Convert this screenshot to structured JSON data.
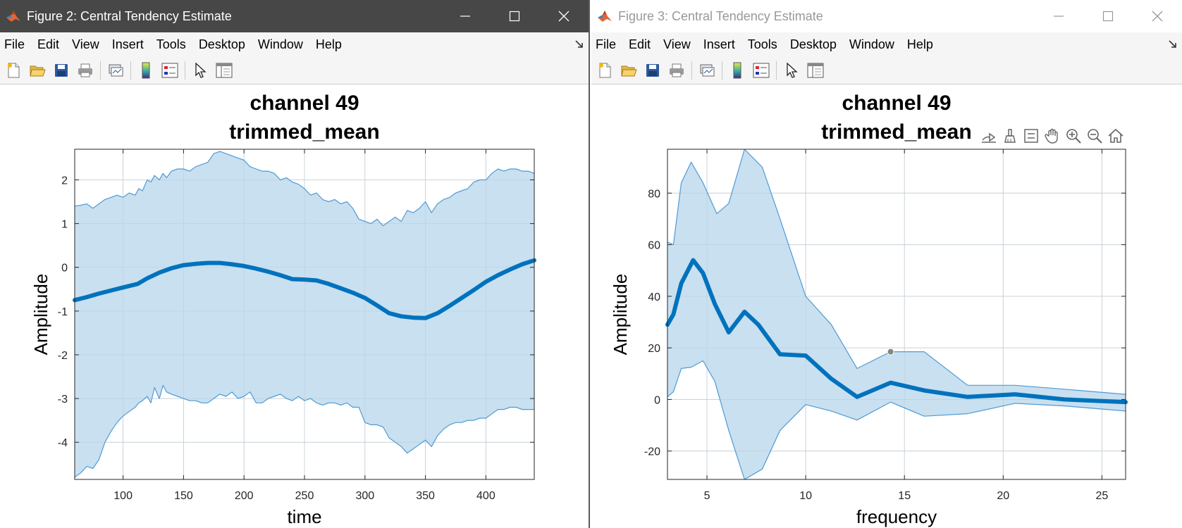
{
  "windows": [
    {
      "title": "Figure 2: Central Tendency Estimate",
      "menu": [
        "File",
        "Edit",
        "View",
        "Insert",
        "Tools",
        "Desktop",
        "Window",
        "Help"
      ],
      "toolbar_icons": [
        "new-figure-icon",
        "open-file-icon",
        "save-icon",
        "print-icon",
        "link-plot-icon",
        "insert-colorbar-icon",
        "insert-legend-icon",
        "edit-plot-icon",
        "property-inspector-icon"
      ]
    },
    {
      "title": "Figure 3: Central Tendency Estimate",
      "menu": [
        "File",
        "Edit",
        "View",
        "Insert",
        "Tools",
        "Desktop",
        "Window",
        "Help"
      ],
      "toolbar_icons": [
        "new-figure-icon",
        "open-file-icon",
        "save-icon",
        "print-icon",
        "link-plot-icon",
        "insert-colorbar-icon",
        "insert-legend-icon",
        "edit-plot-icon",
        "property-inspector-icon"
      ],
      "axes_toolbar": [
        "export-icon",
        "brush-icon",
        "data-tips-icon",
        "pan-icon",
        "zoom-in-icon",
        "zoom-out-icon",
        "home-icon"
      ]
    }
  ],
  "chart_data": [
    {
      "type": "area",
      "title": [
        "channel 49",
        "trimmed_mean"
      ],
      "xlabel": "time",
      "ylabel": "Amplitude",
      "xlim": [
        60,
        440
      ],
      "ylim": [
        -4.85,
        2.7
      ],
      "xticks": [
        100,
        150,
        200,
        250,
        300,
        350,
        400
      ],
      "yticks": [
        -4,
        -3,
        -2,
        -1,
        0,
        1,
        2
      ],
      "grid": true,
      "colors": {
        "line": "#0072BD",
        "band_fill": "#C9E0F0",
        "band_edge": "#4D9BD6"
      },
      "series": [
        {
          "values": {
            "x": [
              60,
              70,
              80,
              90,
              100,
              112,
              120,
              130,
              140,
              150,
              160,
              170,
              180,
              190,
              200,
              210,
              220,
              230,
              240,
              250,
              260,
              270,
              280,
              290,
              300,
              310,
              320,
              330,
              340,
              350,
              360,
              370,
              380,
              390,
              400,
              410,
              420,
              430,
              440
            ],
            "y": [
              -0.75,
              -0.68,
              -0.6,
              -0.53,
              -0.46,
              -0.38,
              -0.25,
              -0.12,
              -0.02,
              0.05,
              0.08,
              0.1,
              0.1,
              0.07,
              0.03,
              -0.03,
              -0.1,
              -0.18,
              -0.27,
              -0.28,
              -0.3,
              -0.38,
              -0.48,
              -0.58,
              -0.7,
              -0.87,
              -1.05,
              -1.12,
              -1.15,
              -1.16,
              -1.05,
              -0.88,
              -0.7,
              -0.52,
              -0.33,
              -0.18,
              -0.05,
              0.07,
              0.16
            ]
          }
        },
        {
          "values": {
            "x": [
              60,
              65,
              70,
              75,
              80,
              85,
              90,
              95,
              100,
              105,
              110,
              113,
              116,
              120,
              123,
              126,
              130,
              133,
              136,
              140,
              145,
              150,
              155,
              160,
              165,
              170,
              175,
              180,
              185,
              190,
              195,
              200,
              205,
              210,
              215,
              220,
              225,
              230,
              235,
              240,
              245,
              250,
              255,
              260,
              265,
              270,
              275,
              280,
              285,
              290,
              295,
              300,
              305,
              310,
              315,
              320,
              325,
              330,
              335,
              340,
              345,
              350,
              355,
              360,
              365,
              370,
              375,
              380,
              385,
              390,
              395,
              400,
              405,
              410,
              415,
              420,
              425,
              430,
              435,
              440
            ],
            "y": [
              1.4,
              1.42,
              1.45,
              1.35,
              1.45,
              1.55,
              1.6,
              1.65,
              1.6,
              1.7,
              1.65,
              1.8,
              1.75,
              2.0,
              1.95,
              2.1,
              2.0,
              2.15,
              2.05,
              2.2,
              2.25,
              2.25,
              2.2,
              2.3,
              2.35,
              2.4,
              2.6,
              2.65,
              2.6,
              2.55,
              2.5,
              2.45,
              2.3,
              2.25,
              2.2,
              2.2,
              2.15,
              2.0,
              2.05,
              1.95,
              1.9,
              1.8,
              1.65,
              1.7,
              1.55,
              1.5,
              1.55,
              1.45,
              1.5,
              1.35,
              1.1,
              1.05,
              1.0,
              1.1,
              0.95,
              1.05,
              1.15,
              1.05,
              1.3,
              1.25,
              1.35,
              1.5,
              1.25,
              1.45,
              1.55,
              1.6,
              1.7,
              1.75,
              1.8,
              1.95,
              2.0,
              2.0,
              2.15,
              2.25,
              2.2,
              2.25,
              2.25,
              2.2,
              2.2,
              2.15
            ]
          }
        },
        {
          "values": {
            "x": [
              60,
              65,
              70,
              75,
              80,
              85,
              90,
              95,
              100,
              105,
              110,
              113,
              116,
              120,
              123,
              126,
              130,
              133,
              136,
              140,
              145,
              150,
              155,
              160,
              165,
              170,
              175,
              180,
              185,
              190,
              195,
              200,
              205,
              210,
              215,
              220,
              225,
              230,
              235,
              240,
              245,
              250,
              255,
              260,
              265,
              270,
              275,
              280,
              285,
              290,
              295,
              300,
              305,
              310,
              315,
              320,
              325,
              330,
              335,
              340,
              345,
              350,
              355,
              360,
              365,
              370,
              375,
              380,
              385,
              390,
              395,
              400,
              405,
              410,
              415,
              420,
              425,
              430,
              435,
              440
            ],
            "y": [
              -4.8,
              -4.7,
              -4.55,
              -4.6,
              -4.4,
              -4.0,
              -3.75,
              -3.55,
              -3.4,
              -3.3,
              -3.2,
              -3.1,
              -3.05,
              -2.95,
              -3.1,
              -2.75,
              -3.0,
              -2.7,
              -2.85,
              -2.9,
              -2.95,
              -3.0,
              -3.05,
              -3.05,
              -3.1,
              -3.1,
              -3.0,
              -2.9,
              -2.95,
              -2.85,
              -3.0,
              -2.95,
              -2.85,
              -3.1,
              -3.1,
              -3.0,
              -2.95,
              -2.9,
              -3.0,
              -3.05,
              -2.95,
              -3.05,
              -3.0,
              -3.1,
              -3.15,
              -3.1,
              -3.1,
              -3.15,
              -3.1,
              -3.2,
              -3.2,
              -3.55,
              -3.6,
              -3.6,
              -3.65,
              -3.9,
              -4.0,
              -4.1,
              -4.25,
              -4.15,
              -4.05,
              -3.95,
              -4.1,
              -3.85,
              -3.7,
              -3.6,
              -3.55,
              -3.55,
              -3.5,
              -3.5,
              -3.45,
              -3.45,
              -3.35,
              -3.25,
              -3.25,
              -3.2,
              -3.2,
              -3.25,
              -3.25,
              -3.25
            ]
          }
        }
      ]
    },
    {
      "type": "area",
      "title": [
        "channel 49",
        "trimmed_mean"
      ],
      "xlabel": "frequency",
      "ylabel": "Amplitude",
      "xlim": [
        3,
        26.2
      ],
      "ylim": [
        -31,
        97
      ],
      "xticks": [
        5,
        10,
        15,
        20,
        25
      ],
      "yticks": [
        -20,
        0,
        20,
        40,
        60,
        80
      ],
      "grid": true,
      "colors": {
        "line": "#0072BD",
        "band_fill": "#C9E0F0",
        "band_edge": "#4D9BD6"
      },
      "series": [
        {
          "values": {
            "x": [
              3,
              3.3,
              3.7,
              4.3,
              4.8,
              5.4,
              6.1,
              6.9,
              7.6,
              8.7,
              10,
              11.3,
              12.6,
              14.3,
              16,
              18.2,
              20.6,
              23.1,
              26.2
            ],
            "y": [
              29,
              33,
              45,
              54,
              49,
              37,
              26,
              34,
              29,
              17.5,
              17,
              8,
              1,
              6.5,
              3.5,
              1,
              2,
              0,
              -1
            ]
          }
        },
        {
          "values": {
            "x": [
              3,
              3.3,
              3.7,
              4.2,
              4.8,
              5.5,
              6.1,
              6.9,
              7.8,
              8.7,
              10,
              11.3,
              12.6,
              14.3,
              16,
              18.2,
              20.6,
              23.1,
              26.2
            ],
            "y": [
              61,
              60,
              84,
              92,
              84,
              72,
              76,
              97,
              90,
              70,
              40,
              29,
              12,
              18.5,
              18.5,
              5.5,
              5.5,
              4,
              2
            ]
          }
        },
        {
          "values": {
            "x": [
              3,
              3.3,
              3.7,
              4.2,
              4.8,
              5.4,
              6.1,
              6.9,
              7.8,
              8.7,
              10,
              11.3,
              12.6,
              14.3,
              16,
              18.2,
              20.6,
              23.1,
              26.2
            ],
            "y": [
              1,
              3,
              12,
              12.5,
              15,
              7,
              -12,
              -31,
              -27,
              -12,
              -2,
              -4.5,
              -8,
              -1,
              -6.5,
              -5.5,
              -1.5,
              -2.5,
              -4.5
            ]
          }
        }
      ],
      "marker": {
        "x": 14.3,
        "y": 18.5
      }
    }
  ]
}
